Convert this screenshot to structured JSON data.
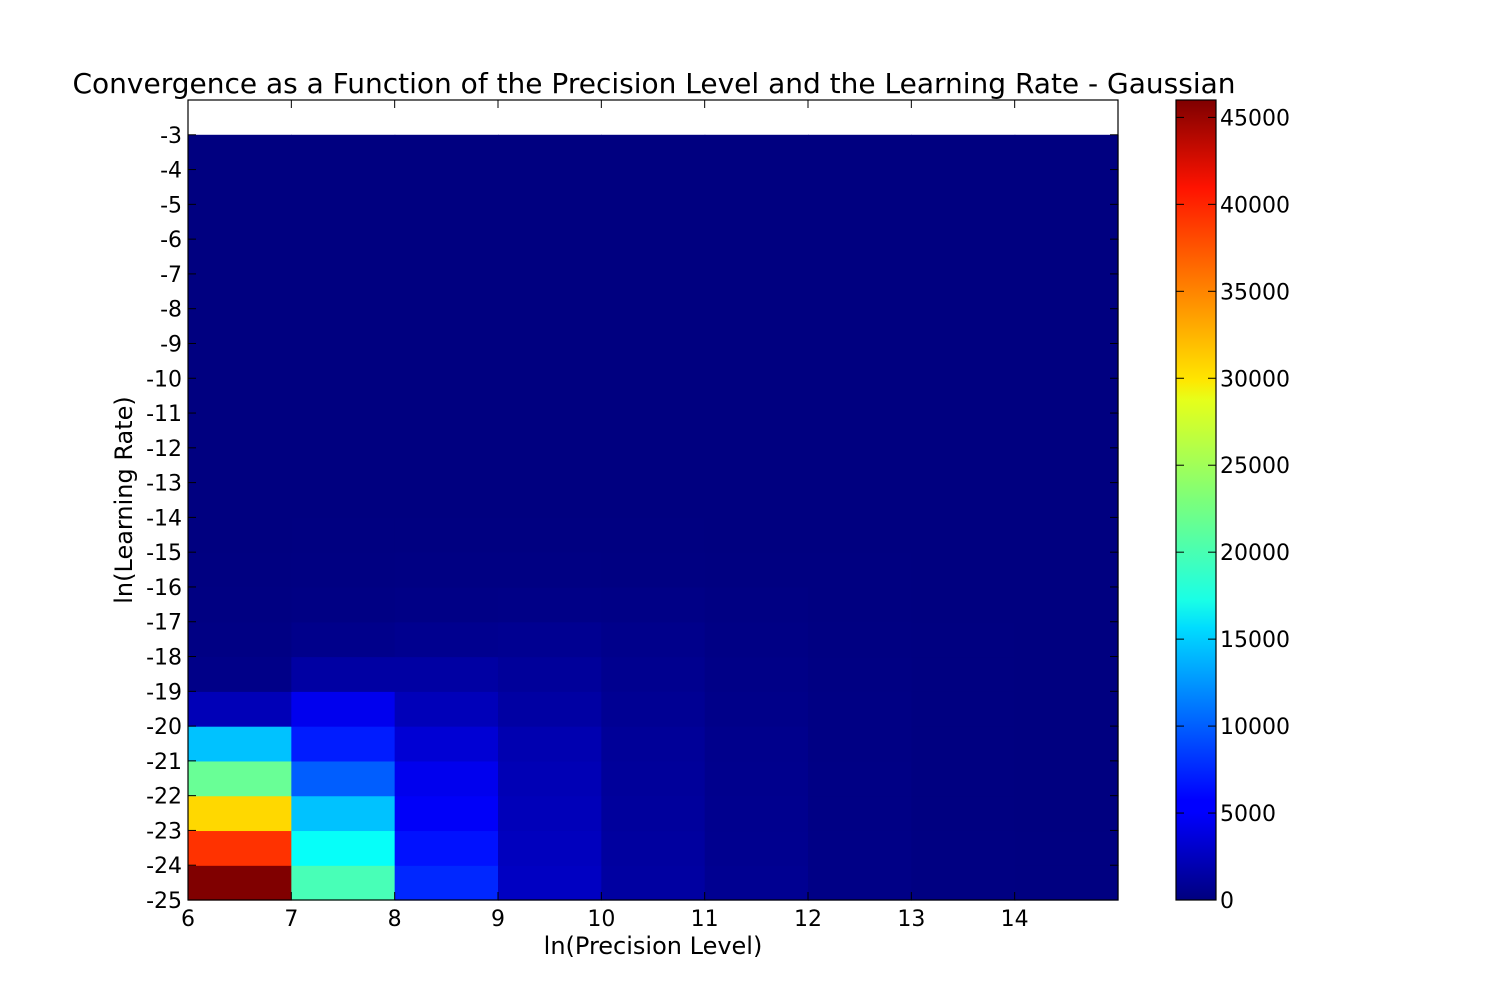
{
  "chart_data": {
    "type": "heatmap",
    "title": "Convergence as a Function of the Precision Level and the Learning Rate - Gaussian",
    "xlabel": "ln(Precision Level)",
    "ylabel": "ln(Learning Rate)",
    "x_bins": [
      6,
      7,
      8,
      9,
      10,
      11,
      12,
      13,
      14
    ],
    "x_range": [
      6,
      15
    ],
    "x_ticks": [
      "6",
      "7",
      "8",
      "9",
      "10",
      "11",
      "12",
      "13",
      "14"
    ],
    "y_bins": [
      -24,
      -23,
      -22,
      -21,
      -20,
      -19,
      -18,
      -17,
      -16,
      -15,
      -14,
      -13,
      -12,
      -11,
      -10,
      -9,
      -8,
      -7,
      -6,
      -5,
      -4,
      -3
    ],
    "y_range": [
      -25,
      -2
    ],
    "y_ticks": [
      "-25",
      "-24",
      "-23",
      "-22",
      "-21",
      "-20",
      "-19",
      "-18",
      "-17",
      "-16",
      "-15",
      "-14",
      "-13",
      "-12",
      "-11",
      "-10",
      "-9",
      "-8",
      "-7",
      "-6",
      "-5",
      "-4",
      "-3"
    ],
    "values": [
      [
        46000,
        20500,
        7500,
        3000,
        1500,
        800,
        300,
        100,
        50
      ],
      [
        38000,
        17500,
        6500,
        2800,
        1400,
        700,
        280,
        100,
        50
      ],
      [
        30500,
        14500,
        5500,
        2600,
        1300,
        650,
        260,
        90,
        45
      ],
      [
        22000,
        10000,
        5000,
        2400,
        1200,
        600,
        240,
        90,
        40
      ],
      [
        14500,
        7000,
        3800,
        2200,
        1100,
        550,
        220,
        80,
        40
      ],
      [
        2500,
        5000,
        2600,
        1600,
        900,
        450,
        200,
        70,
        35
      ],
      [
        400,
        1600,
        1600,
        1200,
        700,
        350,
        160,
        60,
        30
      ],
      [
        200,
        500,
        700,
        800,
        500,
        250,
        120,
        50,
        25
      ],
      [
        100,
        200,
        300,
        350,
        300,
        150,
        80,
        40,
        20
      ],
      [
        50,
        100,
        150,
        150,
        120,
        80,
        50,
        30,
        15
      ],
      [
        30,
        50,
        60,
        60,
        50,
        40,
        30,
        20,
        10
      ],
      [
        20,
        30,
        30,
        30,
        30,
        20,
        20,
        10,
        10
      ],
      [
        10,
        20,
        20,
        20,
        20,
        10,
        10,
        10,
        5
      ],
      [
        10,
        10,
        10,
        10,
        10,
        10,
        5,
        5,
        5
      ],
      [
        5,
        5,
        5,
        5,
        5,
        5,
        5,
        5,
        5
      ],
      [
        5,
        5,
        5,
        5,
        5,
        5,
        5,
        5,
        5
      ],
      [
        0,
        0,
        0,
        0,
        0,
        0,
        0,
        0,
        0
      ],
      [
        0,
        0,
        0,
        0,
        0,
        0,
        0,
        0,
        0
      ],
      [
        0,
        0,
        0,
        0,
        0,
        0,
        0,
        0,
        0
      ],
      [
        0,
        0,
        0,
        0,
        0,
        0,
        0,
        0,
        0
      ],
      [
        0,
        0,
        0,
        0,
        0,
        0,
        0,
        0,
        0
      ],
      [
        0,
        0,
        0,
        0,
        0,
        0,
        0,
        0,
        0
      ]
    ],
    "colorbar": {
      "range": [
        0,
        46000
      ],
      "ticks": [
        0,
        5000,
        10000,
        15000,
        20000,
        25000,
        30000,
        35000,
        40000,
        45000
      ],
      "tick_labels": [
        "0",
        "5000",
        "10000",
        "15000",
        "20000",
        "25000",
        "30000",
        "35000",
        "40000",
        "45000"
      ],
      "colormap": "jet"
    },
    "grid": false
  }
}
